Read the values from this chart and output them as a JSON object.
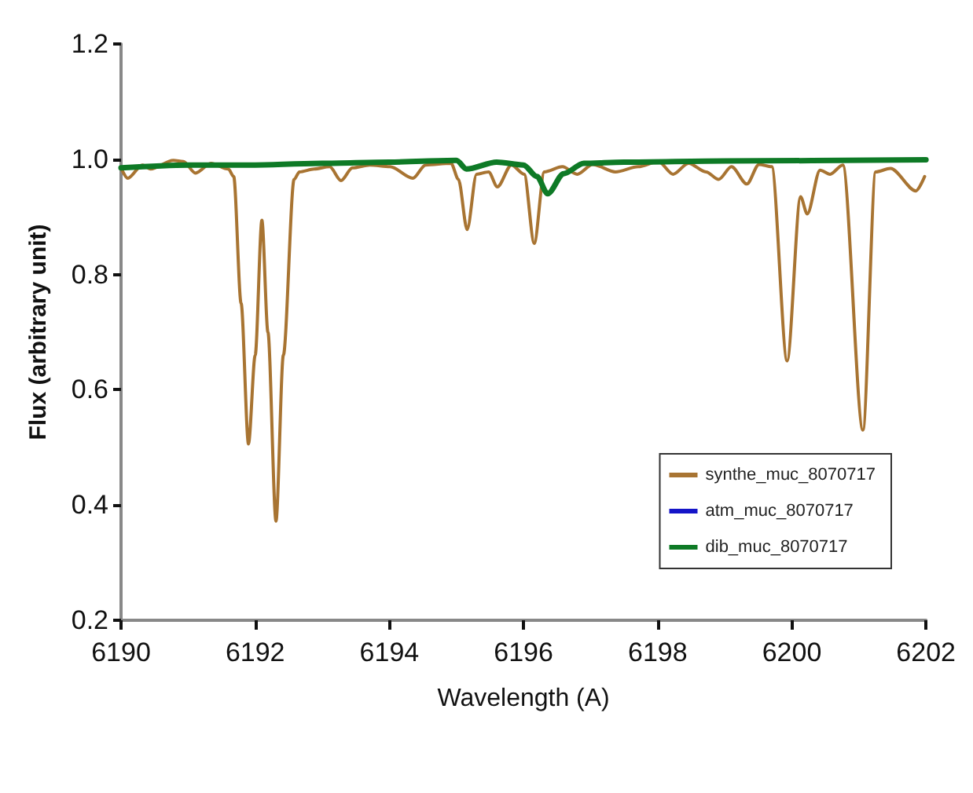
{
  "chart_data": {
    "type": "line",
    "xlabel": "Wavelength (A)",
    "ylabel": "Flux (arbitrary unit)",
    "xlim": [
      6190,
      6202
    ],
    "xticks": [
      6190,
      6192,
      6194,
      6196,
      6198,
      6200,
      6202
    ],
    "ylim": [
      0.2,
      1.2
    ],
    "yticks": [
      0.2,
      0.4,
      0.6,
      0.8,
      {
        "value": 1.0,
        "label": "1.0"
      },
      1.2
    ],
    "grid": false,
    "legend": "bottom right",
    "marker": "none",
    "line_style": "solid",
    "series": [
      {
        "name": "synthe_muc_8070717",
        "color": "#a87432",
        "x": [
          6190.02,
          6190.1,
          6190.32,
          6190.44,
          6190.78,
          6190.93,
          6191.11,
          6191.34,
          6191.6,
          6191.68,
          6191.79,
          6191.9,
          6192.0,
          6192.1,
          6192.19,
          6192.31,
          6192.42,
          6192.58,
          6192.66,
          6192.88,
          6193.11,
          6193.28,
          6193.45,
          6193.71,
          6194.01,
          6194.35,
          6194.54,
          6194.92,
          6195.03,
          6195.16,
          6195.3,
          6195.48,
          6195.61,
          6195.82,
          6196.01,
          6196.16,
          6196.31,
          6196.58,
          6196.8,
          6197.03,
          6197.37,
          6197.71,
          6198.01,
          6198.23,
          6198.46,
          6198.72,
          6198.91,
          6199.1,
          6199.33,
          6199.51,
          6199.7,
          6199.93,
          6200.13,
          6200.23,
          6200.42,
          6200.57,
          6200.76,
          6201.06,
          6201.25,
          6201.47,
          6201.85,
          6201.98
        ],
        "values": [
          0.98,
          0.967,
          0.99,
          0.983,
          0.998,
          0.996,
          0.976,
          0.993,
          0.983,
          0.97,
          0.75,
          0.506,
          0.66,
          0.894,
          0.7,
          0.372,
          0.66,
          0.965,
          0.978,
          0.983,
          0.987,
          0.963,
          0.985,
          0.99,
          0.987,
          0.967,
          0.99,
          0.993,
          0.965,
          0.878,
          0.974,
          0.978,
          0.952,
          0.99,
          0.974,
          0.854,
          0.978,
          0.987,
          0.974,
          0.991,
          0.978,
          0.987,
          0.996,
          0.974,
          0.993,
          0.978,
          0.965,
          0.987,
          0.957,
          0.991,
          0.987,
          0.65,
          0.935,
          0.905,
          0.981,
          0.974,
          0.99,
          0.53,
          0.978,
          0.984,
          0.945,
          0.97
        ]
      },
      {
        "name": "atm_muc_8070717",
        "color": "#1414c8"
      },
      {
        "name": "dib_muc_8070717",
        "color": "#0e7a26",
        "x": [
          6190,
          6191,
          6192,
          6193,
          6194,
          6195,
          6195.15,
          6195.6,
          6196,
          6196.2,
          6196.36,
          6196.6,
          6196.9,
          6197.5,
          6199,
          6202
        ],
        "values": [
          0.985,
          0.99,
          0.99,
          0.993,
          0.995,
          0.998,
          0.983,
          0.995,
          0.99,
          0.97,
          0.94,
          0.975,
          0.993,
          0.995,
          0.997,
          0.999
        ]
      }
    ]
  }
}
